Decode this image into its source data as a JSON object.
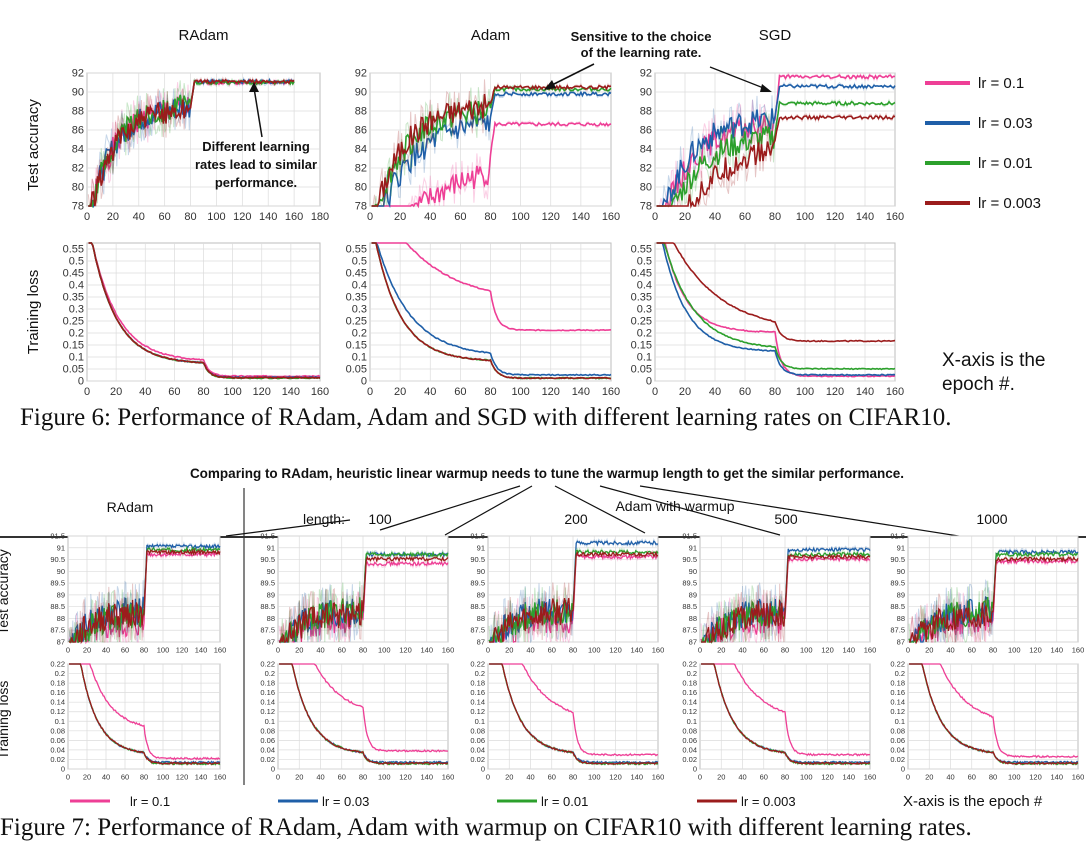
{
  "fig6": {
    "titles": [
      "RAdam",
      "Adam",
      "SGD"
    ],
    "ylabel_acc": "Test accuracy",
    "ylabel_loss": "Training loss",
    "acc_ticks": [
      "92",
      "90",
      "88",
      "86",
      "84",
      "82",
      "80",
      "78"
    ],
    "loss_ticks": [
      "0.55",
      "0.5",
      "0.45",
      "0.4",
      "0.35",
      "0.3",
      "0.25",
      "0.2",
      "0.15",
      "0.1",
      "0.05",
      "0"
    ],
    "x_ticks_radam": [
      "0",
      "20",
      "40",
      "60",
      "80",
      "100",
      "120",
      "140",
      "160",
      "180"
    ],
    "x_ticks": [
      "0",
      "20",
      "40",
      "60",
      "80",
      "100",
      "120",
      "140",
      "160"
    ],
    "annotation_radam": [
      "Different learning",
      "rates lead to similar",
      "performance."
    ],
    "annotation_adam": [
      "Sensitive to the choice",
      "of the learning rate."
    ],
    "xaxis_note": [
      "X-axis is the",
      "epoch #."
    ],
    "caption": "Figure 6: Performance of RAdam, Adam and SGD with different learning rates on CIFAR10."
  },
  "legend": [
    {
      "label": "lr = 0.1",
      "color": "#ee3f96"
    },
    {
      "label": "lr = 0.03",
      "color": "#1f5fa8"
    },
    {
      "label": "lr = 0.01",
      "color": "#2ca02c"
    },
    {
      "label": "lr = 0.003",
      "color": "#9b1c1c"
    }
  ],
  "fig7": {
    "headline": "Comparing to RAdam, heuristic linear warmup needs to tune the warmup length to get the similar performance.",
    "radam_title": "RAdam",
    "length_label": "length:",
    "lengths": [
      "100",
      "200",
      "500",
      "1000"
    ],
    "adam_warmup_label": "Adam with warmup",
    "ylabel_acc": "Test accuracy",
    "ylabel_loss": "Training loss",
    "acc_ticks": [
      "91.5",
      "91",
      "90.5",
      "90",
      "89.5",
      "89",
      "88.5",
      "88",
      "87.5",
      "87"
    ],
    "loss_ticks": [
      "0.22",
      "0.2",
      "0.18",
      "0.16",
      "0.14",
      "0.12",
      "0.1",
      "0.08",
      "0.06",
      "0.04",
      "0.02",
      "0"
    ],
    "x_ticks": [
      "0",
      "20",
      "40",
      "60",
      "80",
      "100",
      "120",
      "140",
      "160"
    ],
    "xaxis_note": "X-axis is the epoch #",
    "caption": "Figure 7: Performance of RAdam, Adam with warmup on CIFAR10 with different learning rates."
  },
  "chart_data": [
    {
      "type": "line",
      "title": "RAdam",
      "ylabel": "Test accuracy",
      "xlim": [
        0,
        180
      ],
      "ylim": [
        78,
        92
      ],
      "series": [
        {
          "name": "lr = 0.1",
          "final": 91.0
        },
        {
          "name": "lr = 0.03",
          "final": 91.1
        },
        {
          "name": "lr = 0.01",
          "final": 91.0
        },
        {
          "name": "lr = 0.003",
          "final": 91.1
        }
      ]
    },
    {
      "type": "line",
      "title": "Adam",
      "ylabel": "Test accuracy",
      "xlim": [
        0,
        160
      ],
      "ylim": [
        78,
        92
      ],
      "series": [
        {
          "name": "lr = 0.1",
          "final": 86.6
        },
        {
          "name": "lr = 0.03",
          "final": 89.8
        },
        {
          "name": "lr = 0.01",
          "final": 90.3
        },
        {
          "name": "lr = 0.003",
          "final": 90.5
        }
      ]
    },
    {
      "type": "line",
      "title": "SGD",
      "ylabel": "Test accuracy",
      "xlim": [
        0,
        160
      ],
      "ylim": [
        78,
        92
      ],
      "series": [
        {
          "name": "lr = 0.1",
          "final": 91.6
        },
        {
          "name": "lr = 0.03",
          "final": 90.6
        },
        {
          "name": "lr = 0.01",
          "final": 88.8
        },
        {
          "name": "lr = 0.003",
          "final": 87.3
        }
      ]
    },
    {
      "type": "line",
      "title": "RAdam",
      "ylabel": "Training loss",
      "xlim": [
        0,
        160
      ],
      "ylim": [
        0,
        0.55
      ],
      "series": [
        {
          "name": "lr = 0.1",
          "final": 0.02
        },
        {
          "name": "lr = 0.03",
          "final": 0.015
        },
        {
          "name": "lr = 0.01",
          "final": 0.012
        },
        {
          "name": "lr = 0.003",
          "final": 0.014
        }
      ]
    },
    {
      "type": "line",
      "title": "Adam",
      "ylabel": "Training loss",
      "xlim": [
        0,
        160
      ],
      "ylim": [
        0,
        0.55
      ],
      "series": [
        {
          "name": "lr = 0.1",
          "final": 0.21
        },
        {
          "name": "lr = 0.03",
          "final": 0.025
        },
        {
          "name": "lr = 0.01",
          "final": 0.012
        },
        {
          "name": "lr = 0.003",
          "final": 0.012
        }
      ]
    },
    {
      "type": "line",
      "title": "SGD",
      "ylabel": "Training loss",
      "xlim": [
        0,
        160
      ],
      "ylim": [
        0,
        0.55
      ],
      "series": [
        {
          "name": "lr = 0.1",
          "final": 0.02
        },
        {
          "name": "lr = 0.03",
          "final": 0.025
        },
        {
          "name": "lr = 0.01",
          "final": 0.05
        },
        {
          "name": "lr = 0.003",
          "final": 0.165
        }
      ]
    }
  ]
}
